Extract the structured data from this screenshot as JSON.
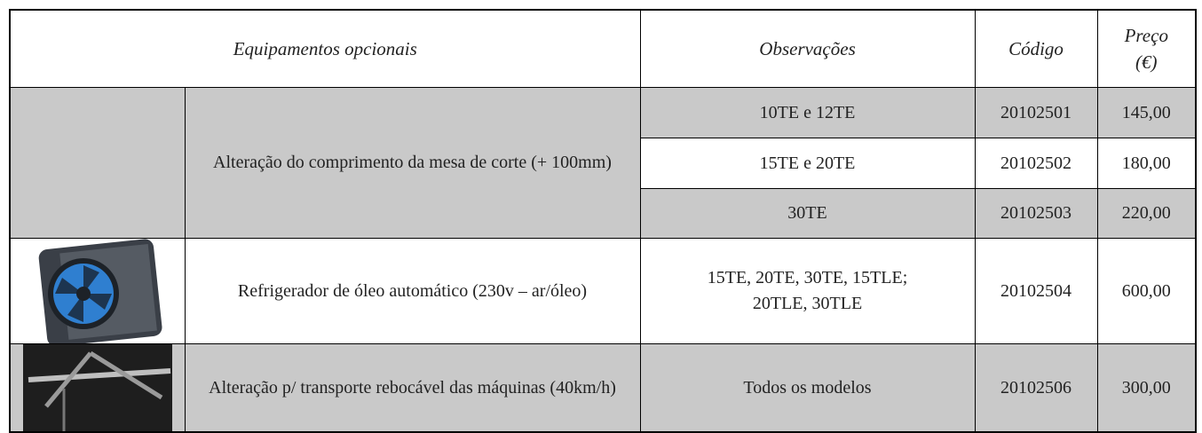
{
  "table": {
    "header": [
      "Equipamentos opcionais",
      "Observações",
      "Código",
      "Preço (€)"
    ],
    "rows": [
      {
        "equipment": "Alteração do comprimento da mesa de corte (+ 100mm)",
        "items": [
          {
            "observations": "10TE e 12TE",
            "code": "20102501",
            "price": "145,00"
          },
          {
            "observations": "15TE e 20TE",
            "code": "20102502",
            "price": "180,00"
          },
          {
            "observations": "30TE",
            "code": "20102503",
            "price": "220,00"
          }
        ]
      },
      {
        "equipment": "Refrigerador de óleo automático (230v – ar/óleo)",
        "items": [
          {
            "observations": "15TE, 20TE, 30TE, 15TLE; 20TLE, 30TLE",
            "code": "20102504",
            "price": "600,00"
          }
        ]
      },
      {
        "equipment": "Alteração p/ transporte rebocável das máquinas (40km/h)",
        "items": [
          {
            "observations": "Todos os modelos",
            "code": "20102506",
            "price": "300,00"
          }
        ]
      }
    ]
  }
}
